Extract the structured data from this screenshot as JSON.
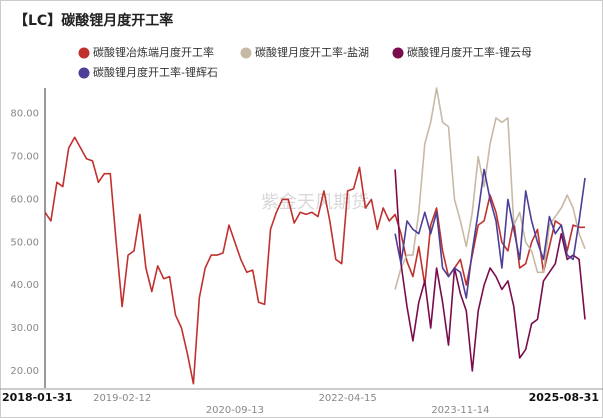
{
  "chart_data": {
    "type": "line",
    "title": "【LC】碳酸锂月度开工率",
    "watermark": "紫金天风期货",
    "categories": [
      "2018-01-31",
      null,
      null,
      null,
      null,
      null,
      null,
      null,
      null,
      null,
      null,
      null,
      null,
      "2019-02-12",
      null,
      null,
      null,
      null,
      null,
      null,
      null,
      null,
      null,
      null,
      null,
      null,
      null,
      null,
      null,
      null,
      null,
      null,
      "2020-09-13",
      null,
      null,
      null,
      null,
      null,
      null,
      null,
      null,
      null,
      null,
      null,
      null,
      null,
      null,
      null,
      null,
      null,
      null,
      "2022-04-15",
      null,
      null,
      null,
      null,
      null,
      null,
      null,
      null,
      null,
      null,
      null,
      null,
      null,
      null,
      null,
      null,
      null,
      null,
      "2023-11-14",
      null,
      null,
      null,
      null,
      null,
      null,
      null,
      null,
      null,
      null,
      null,
      null,
      null,
      null,
      null,
      null,
      null,
      null,
      null,
      null,
      "2025-08-31"
    ],
    "series": [
      {
        "name": "碳酸锂冶炼端月度开工率",
        "color": "#c0312e",
        "values": [
          57,
          55,
          64,
          63,
          72,
          74.5,
          72,
          69.5,
          69,
          64,
          66,
          66,
          50,
          35,
          47,
          48,
          56.5,
          44,
          38.5,
          44.5,
          41.5,
          42,
          33,
          30,
          24,
          17,
          37,
          44,
          47,
          47,
          47.5,
          54,
          50,
          46,
          43,
          43.5,
          36,
          35.5,
          53,
          57,
          60,
          60,
          54.5,
          57,
          56.5,
          57,
          56,
          62,
          55,
          46,
          45,
          62,
          62.5,
          67.5,
          58,
          60,
          53,
          58,
          55,
          56.5,
          52,
          45.5,
          42,
          49,
          40,
          54,
          58,
          48,
          42,
          44,
          46,
          40,
          47,
          54,
          55,
          61,
          57,
          50,
          48,
          55,
          44,
          45,
          50,
          53,
          43,
          49,
          55,
          54,
          48,
          54,
          53.5,
          53.5
        ]
      },
      {
        "name": "碳酸锂月度开工率-盐湖",
        "color": "#c8b9a6",
        "values": [
          null,
          null,
          null,
          null,
          null,
          null,
          null,
          null,
          null,
          null,
          null,
          null,
          null,
          null,
          null,
          null,
          null,
          null,
          null,
          null,
          null,
          null,
          null,
          null,
          null,
          null,
          null,
          null,
          null,
          null,
          null,
          null,
          null,
          null,
          null,
          null,
          null,
          null,
          null,
          null,
          null,
          null,
          null,
          null,
          null,
          null,
          null,
          null,
          null,
          null,
          null,
          null,
          null,
          null,
          null,
          null,
          null,
          null,
          null,
          39,
          44,
          47,
          47,
          57,
          73,
          78,
          86,
          78,
          77,
          60,
          55,
          49,
          57,
          70,
          63,
          73,
          79,
          78,
          79,
          54,
          57,
          50,
          48,
          43,
          43,
          54,
          56,
          58,
          61,
          58,
          52,
          48.5
        ]
      },
      {
        "name": "碳酸锂月度开工率-锂云母",
        "color": "#7a0c4d",
        "values": [
          null,
          null,
          null,
          null,
          null,
          null,
          null,
          null,
          null,
          null,
          null,
          null,
          null,
          null,
          null,
          null,
          null,
          null,
          null,
          null,
          null,
          null,
          null,
          null,
          null,
          null,
          null,
          null,
          null,
          null,
          null,
          null,
          null,
          null,
          null,
          null,
          null,
          null,
          null,
          null,
          null,
          null,
          null,
          null,
          null,
          null,
          null,
          null,
          null,
          null,
          null,
          null,
          null,
          null,
          null,
          null,
          null,
          null,
          null,
          67,
          45,
          35,
          27,
          36,
          41,
          30,
          44,
          36,
          26,
          44,
          38,
          34,
          20,
          34,
          40,
          44,
          42,
          39,
          41,
          35,
          23,
          25,
          31,
          32,
          41,
          43,
          45,
          52,
          46,
          47,
          46,
          32
        ]
      },
      {
        "name": "碳酸锂月度开工率-锂辉石",
        "color": "#4b3f98",
        "values": [
          null,
          null,
          null,
          null,
          null,
          null,
          null,
          null,
          null,
          null,
          null,
          null,
          null,
          null,
          null,
          null,
          null,
          null,
          null,
          null,
          null,
          null,
          null,
          null,
          null,
          null,
          null,
          null,
          null,
          null,
          null,
          null,
          null,
          null,
          null,
          null,
          null,
          null,
          null,
          null,
          null,
          null,
          null,
          null,
          null,
          null,
          null,
          null,
          null,
          null,
          null,
          null,
          null,
          null,
          null,
          null,
          null,
          null,
          null,
          52,
          45,
          55,
          53,
          52,
          57,
          52,
          57,
          44,
          42,
          44,
          43,
          37,
          48,
          57,
          67,
          60,
          55,
          44,
          60,
          53,
          46,
          62,
          55,
          50,
          46,
          56,
          52,
          54,
          47,
          46,
          55,
          65
        ]
      }
    ],
    "ylim": [
      16,
      86
    ],
    "yticks": [
      {
        "value": 20,
        "label": "20.00"
      },
      {
        "value": 30,
        "label": "30.00"
      },
      {
        "value": 40,
        "label": "40.00"
      },
      {
        "value": 50,
        "label": "50.00"
      },
      {
        "value": 60,
        "label": "60.00"
      },
      {
        "value": 70,
        "label": "70.00"
      },
      {
        "value": 80,
        "label": "80.00"
      }
    ],
    "grid": false
  }
}
